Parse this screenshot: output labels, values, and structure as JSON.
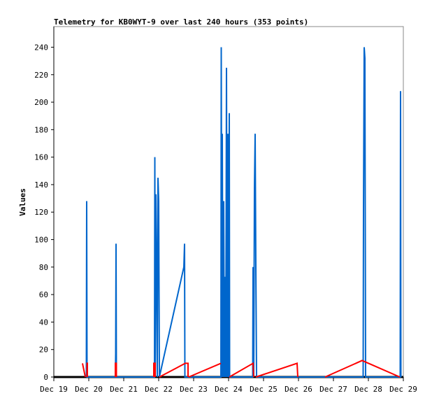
{
  "chart_data": {
    "type": "line",
    "title": "Telemetry for KB0WYT-9 over last 240 hours (353 points)",
    "xlabel": "",
    "ylabel": "Values",
    "xlim": [
      0,
      10
    ],
    "ylim": [
      0,
      255
    ],
    "grid": false,
    "x_ticks": [
      "Dec 19",
      "Dec 20",
      "Dec 21",
      "Dec 22",
      "Dec 23",
      "Dec 24",
      "Dec 25",
      "Dec 26",
      "Dec 27",
      "Dec 28",
      "Dec 29"
    ],
    "y_ticks": [
      0,
      20,
      40,
      60,
      80,
      100,
      120,
      140,
      160,
      180,
      200,
      220,
      240
    ],
    "series": [
      {
        "name": "baseline",
        "color": "#000000",
        "segments": [
          [
            [
              0,
              0
            ],
            [
              10,
              0
            ]
          ]
        ]
      },
      {
        "name": "blue",
        "color": "#0066cc",
        "segments": [
          [
            [
              0.93,
              0
            ],
            [
              0.94,
              128
            ],
            [
              0.95,
              0
            ],
            [
              1.76,
              0
            ],
            [
              1.77,
              17
            ],
            [
              1.78,
              97
            ],
            [
              1.79,
              0
            ],
            [
              2.88,
              0
            ],
            [
              2.89,
              160
            ],
            [
              2.9,
              0
            ],
            [
              2.92,
              133
            ],
            [
              2.94,
              80
            ],
            [
              2.96,
              0
            ],
            [
              2.98,
              145
            ],
            [
              3.0,
              128
            ],
            [
              3.02,
              0
            ],
            [
              3.72,
              80
            ],
            [
              3.74,
              97
            ],
            [
              3.75,
              0
            ],
            [
              4.78,
              0
            ],
            [
              4.79,
              240
            ],
            [
              4.81,
              0
            ],
            [
              4.82,
              177
            ],
            [
              4.84,
              0
            ],
            [
              4.86,
              128
            ],
            [
              4.88,
              0
            ],
            [
              4.9,
              73
            ],
            [
              4.92,
              0
            ],
            [
              4.94,
              225
            ],
            [
              4.96,
              0
            ],
            [
              4.98,
              177
            ],
            [
              5.0,
              0
            ],
            [
              5.02,
              192
            ],
            [
              5.03,
              0
            ],
            [
              5.69,
              0
            ],
            [
              5.7,
              80
            ],
            [
              5.72,
              0
            ],
            [
              5.74,
              137
            ],
            [
              5.76,
              177
            ],
            [
              5.78,
              80
            ],
            [
              5.8,
              0
            ],
            [
              8.85,
              0
            ],
            [
              8.86,
              120
            ],
            [
              8.88,
              240
            ],
            [
              8.9,
              232
            ],
            [
              8.92,
              0
            ],
            [
              9.91,
              0
            ],
            [
              9.92,
              208
            ],
            [
              9.93,
              0
            ]
          ]
        ]
      },
      {
        "name": "red",
        "color": "#ff0000",
        "segments": [
          [
            [
              0.82,
              10
            ],
            [
              0.9,
              0
            ]
          ],
          [
            [
              0.95,
              0
            ],
            [
              0.95,
              10
            ],
            [
              0.96,
              10
            ],
            [
              0.96,
              0
            ]
          ],
          [
            [
              1.76,
              0
            ],
            [
              1.76,
              10
            ],
            [
              1.79,
              10
            ],
            [
              1.79,
              0
            ]
          ],
          [
            [
              2.86,
              0
            ],
            [
              2.86,
              10
            ],
            [
              2.9,
              10
            ],
            [
              2.9,
              0
            ]
          ],
          [
            [
              3.02,
              0
            ],
            [
              3.76,
              10
            ],
            [
              3.84,
              10
            ],
            [
              3.84,
              0
            ]
          ],
          [
            [
              3.86,
              0
            ],
            [
              4.78,
              10
            ]
          ],
          [
            [
              5.02,
              0
            ],
            [
              5.7,
              10
            ],
            [
              5.72,
              0
            ]
          ],
          [
            [
              5.78,
              0
            ],
            [
              6.96,
              10
            ],
            [
              6.98,
              0
            ]
          ],
          [
            [
              7.76,
              0
            ],
            [
              8.82,
              12
            ],
            [
              9.9,
              0
            ]
          ]
        ]
      }
    ]
  }
}
